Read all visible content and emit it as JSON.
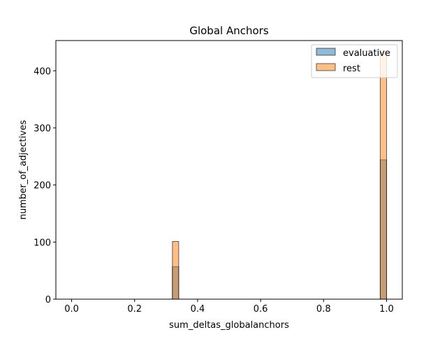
{
  "chart_data": {
    "type": "bar",
    "title": "Global Anchors",
    "xlabel": "sum_deltas_globalanchors",
    "ylabel": "number_of_adjectives",
    "xlim": [
      -0.05,
      1.05
    ],
    "ylim": [
      0,
      453
    ],
    "bin_width": 0.02,
    "xticks": [
      0.0,
      0.2,
      0.4,
      0.6,
      0.8,
      1.0
    ],
    "xtick_labels": [
      "0.0",
      "0.2",
      "0.4",
      "0.6",
      "0.8",
      "1.0"
    ],
    "yticks": [
      0,
      100,
      200,
      300,
      400
    ],
    "ytick_labels": [
      "0",
      "100",
      "200",
      "300",
      "400"
    ],
    "legend_position": "top-right",
    "grid": false,
    "series": [
      {
        "name": "evaluative",
        "color": "#1f77b4",
        "bins": [
          {
            "x": 0.33,
            "value": 57
          },
          {
            "x": 0.99,
            "value": 244
          }
        ]
      },
      {
        "name": "rest",
        "color": "#ff7f0e",
        "bins": [
          {
            "x": 0.33,
            "value": 101
          },
          {
            "x": 0.99,
            "value": 433
          }
        ]
      }
    ]
  }
}
